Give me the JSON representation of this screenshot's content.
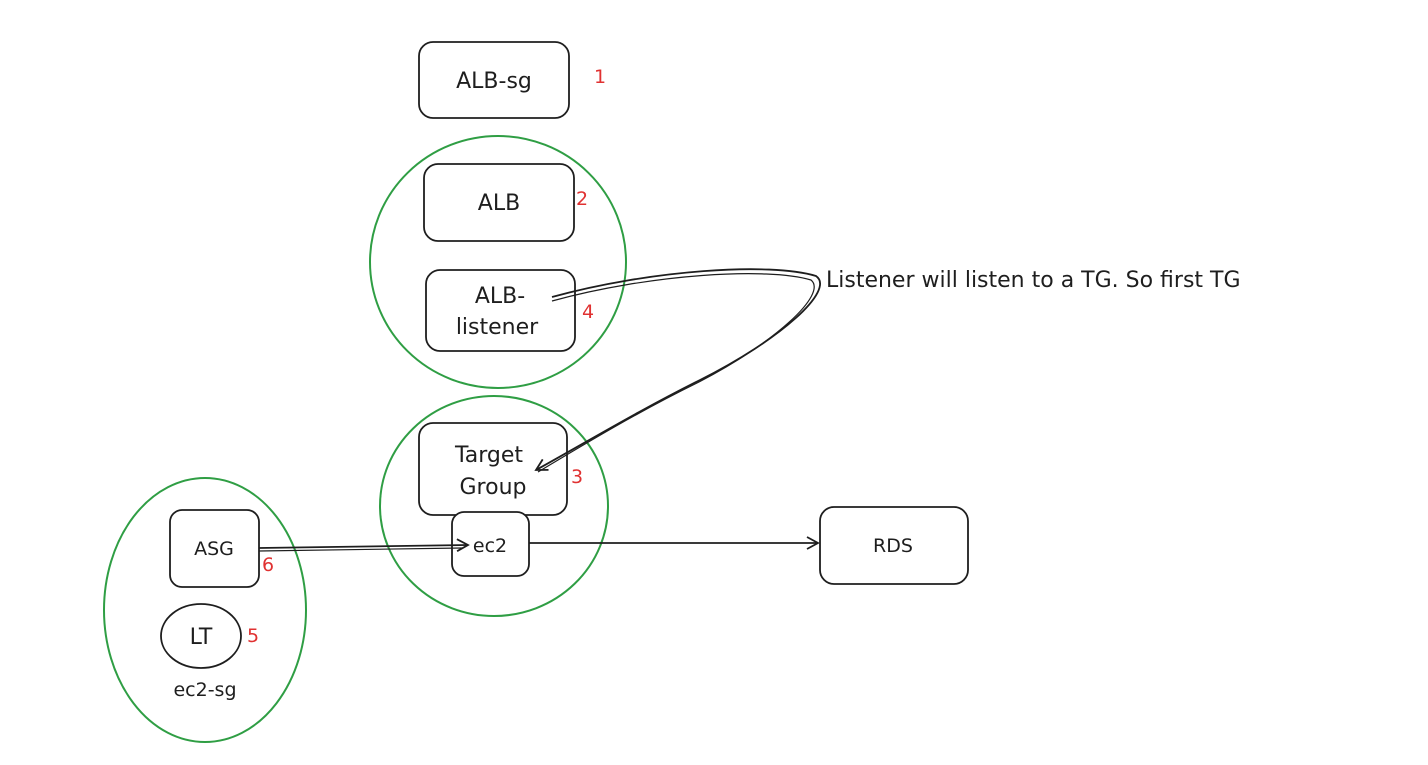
{
  "colors": {
    "ink": "#1e1e1e",
    "group_circle": "#2f9e44",
    "order_number": "#e03131"
  },
  "nodes": {
    "alb_sg": {
      "label": "ALB-sg",
      "order": "1"
    },
    "alb": {
      "label": "ALB",
      "order": "2"
    },
    "alb_listener": {
      "label_line1": "ALB-",
      "label_line2": "listener",
      "order": "4"
    },
    "target_group": {
      "label_line1": "Target",
      "label_line2": "Group",
      "order": "3"
    },
    "ec2": {
      "label": "ec2"
    },
    "rds": {
      "label": "RDS"
    },
    "asg": {
      "label": "ASG",
      "order": "6"
    },
    "lt": {
      "label": "LT",
      "order": "5"
    },
    "ec2_sg": {
      "label": "ec2-sg"
    }
  },
  "annotation": {
    "listener_note": "Listener will listen to a TG. So first TG"
  }
}
